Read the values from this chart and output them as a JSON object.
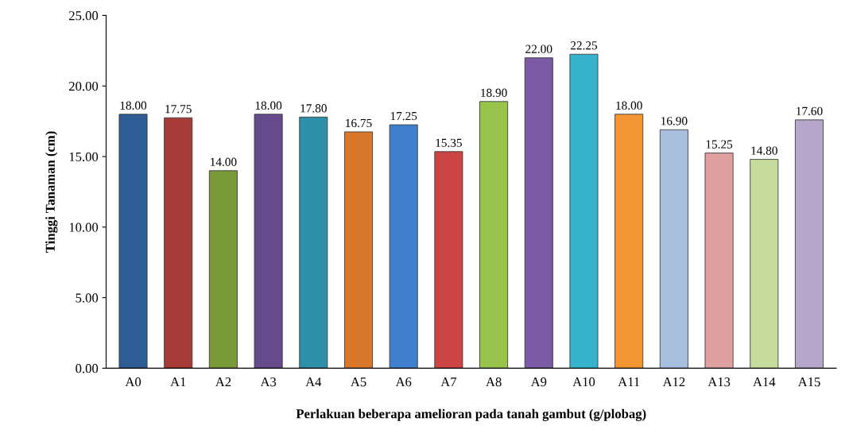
{
  "chart_data": {
    "type": "bar",
    "xlabel": "Perlakuan beberapa amelioran pada tanah gambut (g/plobag)",
    "ylabel": "Tinggi Tanaman (cm)",
    "categories": [
      "A0",
      "A1",
      "A2",
      "A3",
      "A4",
      "A5",
      "A6",
      "A7",
      "A8",
      "A9",
      "A10",
      "A11",
      "A12",
      "A13",
      "A14",
      "A15"
    ],
    "values": [
      18.0,
      17.75,
      14.0,
      18.0,
      17.8,
      16.75,
      17.25,
      15.35,
      18.9,
      22.0,
      22.25,
      18.0,
      16.9,
      15.25,
      14.8,
      17.6
    ],
    "value_labels": [
      "18.00",
      "17.75",
      "14.00",
      "18.00",
      "17.80",
      "16.75",
      "17.25",
      "15.35",
      "18.90",
      "22.00",
      "22.25",
      "18.00",
      "16.90",
      "15.25",
      "14.80",
      "17.60"
    ],
    "colors": [
      "#2e5c94",
      "#a83a38",
      "#7a9a3a",
      "#654a8c",
      "#2e8fa8",
      "#d9782a",
      "#3f7fcc",
      "#cc4444",
      "#99c44c",
      "#7b5aa6",
      "#35b2cc",
      "#f49634",
      "#a9bfe0",
      "#e0a0a0",
      "#c6dc9c",
      "#b6a6cc"
    ],
    "ylim": [
      0,
      25
    ],
    "yticks": [
      {
        "value": 0,
        "label": "0.00"
      },
      {
        "value": 5,
        "label": "5.00"
      },
      {
        "value": 10,
        "label": "10.00"
      },
      {
        "value": 15,
        "label": "15.00"
      },
      {
        "value": 20,
        "label": "20.00"
      },
      {
        "value": 25,
        "label": "25.00"
      }
    ],
    "grid": false
  }
}
